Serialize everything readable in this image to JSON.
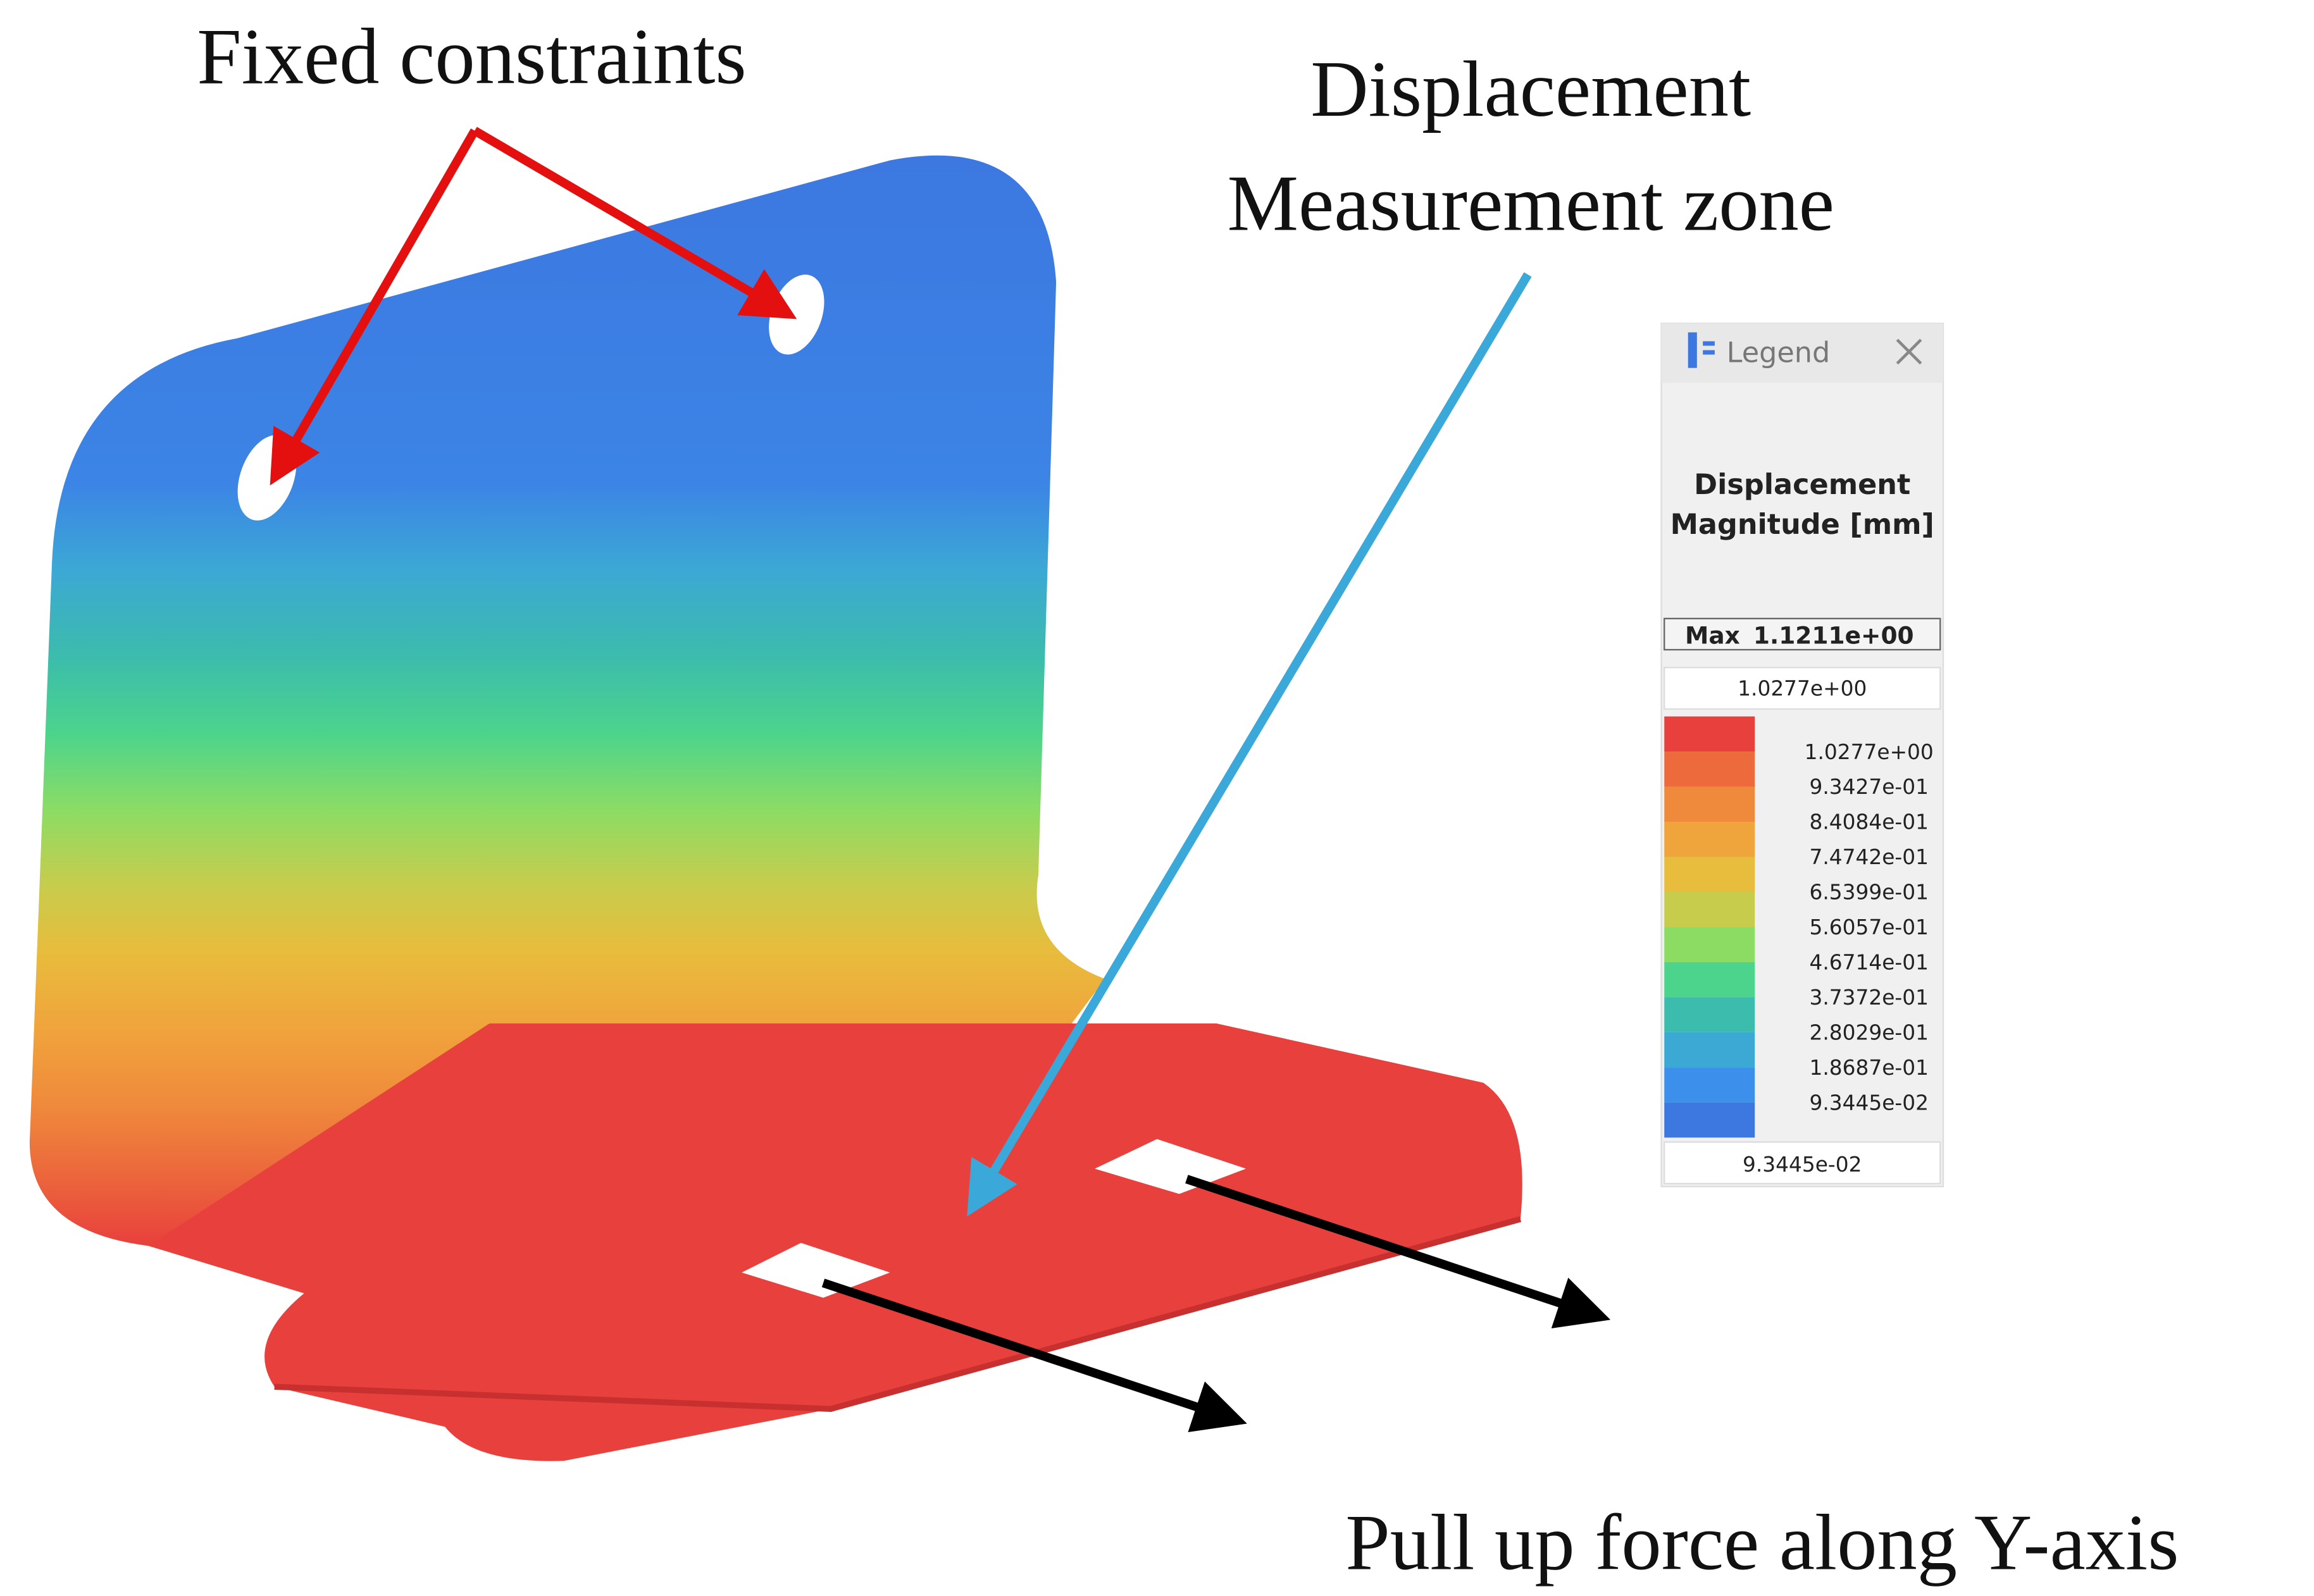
{
  "annotations": {
    "fixed_constraints": "Fixed constraints",
    "measurement_zone": [
      "Displacement",
      "Measurement zone"
    ],
    "pull_force": "Pull up force along Y-axis"
  },
  "legend": {
    "header": "Legend",
    "title": [
      "Displacement",
      "Magnitude [mm]"
    ],
    "max_label": "Max",
    "max_value": "1.1211e+00",
    "top_value": "1.0277e+00",
    "swatches": [
      "#e8403c",
      "#ec6a3c",
      "#ef8a3c",
      "#f0a43c",
      "#e8bc3c",
      "#c8cc4c",
      "#8cdc64",
      "#4cd48c",
      "#3cbcac",
      "#3ca8d4",
      "#3c90ec",
      "#3c78e0"
    ],
    "ticks": [
      "1.0277e+00",
      "9.3427e-01",
      "8.4084e-01",
      "7.4742e-01",
      "6.5399e-01",
      "5.6057e-01",
      "4.6714e-01",
      "3.7372e-01",
      "2.8029e-01",
      "1.8687e-01",
      "9.3445e-02"
    ],
    "bottom_value": "9.3445e-02"
  }
}
